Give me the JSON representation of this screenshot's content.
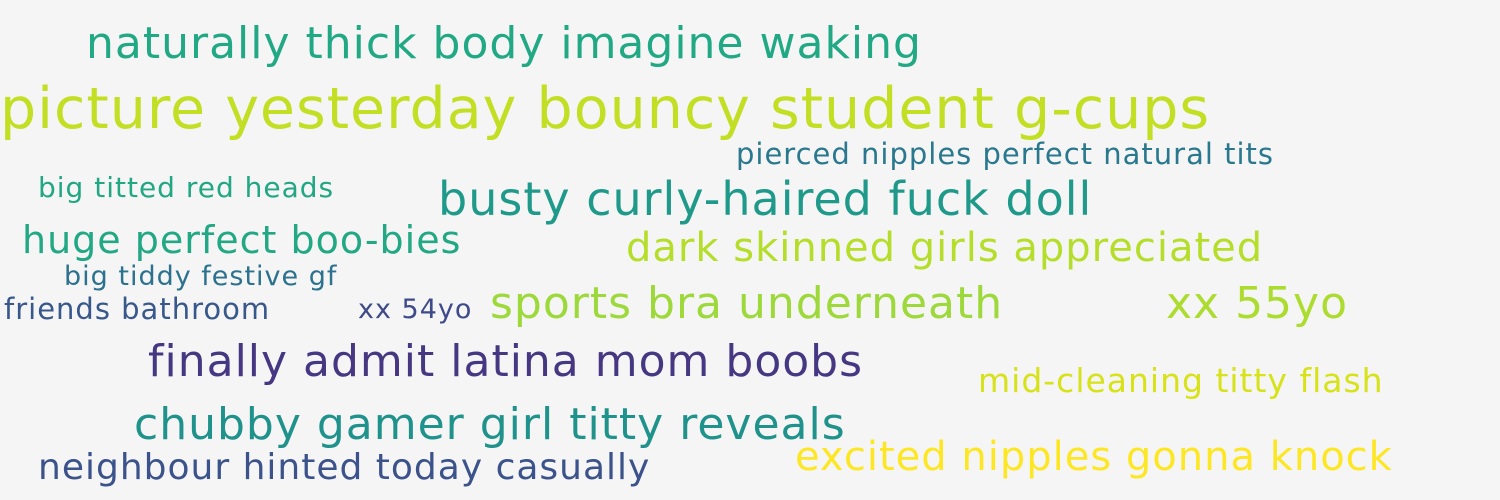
{
  "phrases": [
    {
      "text": "naturally thick body imagine waking",
      "color": "#21a884"
    },
    {
      "text": "picture yesterday bouncy student g-cups",
      "color": "#c2df23"
    },
    {
      "text": "pierced nipples perfect natural tits",
      "color": "#2a788e"
    },
    {
      "text": "big titted red heads",
      "color": "#22a785"
    },
    {
      "text": "busty curly-haired fuck doll",
      "color": "#1f9a8a"
    },
    {
      "text": "huge perfect boo-bies",
      "color": "#22a884"
    },
    {
      "text": "dark skinned girls appreciated",
      "color": "#b5de2b"
    },
    {
      "text": "big tiddy festive gf",
      "color": "#2c718e"
    },
    {
      "text": "friends bathroom",
      "color": "#38588c"
    },
    {
      "text": "xx 54yo",
      "color": "#3e4a89"
    },
    {
      "text": "sports bra underneath",
      "color": "#9dd93b"
    },
    {
      "text": "xx 55yo",
      "color": "#addc30"
    },
    {
      "text": "finally admit latina mom boobs",
      "color": "#453781"
    },
    {
      "text": "mid-cleaning titty flash",
      "color": "#d8e219"
    },
    {
      "text": "chubby gamer girl titty reveals",
      "color": "#1f928c"
    },
    {
      "text": "neighbour hinted today casually",
      "color": "#3b528b"
    },
    {
      "text": "excited nipples gonna knock",
      "color": "#fde725"
    }
  ]
}
